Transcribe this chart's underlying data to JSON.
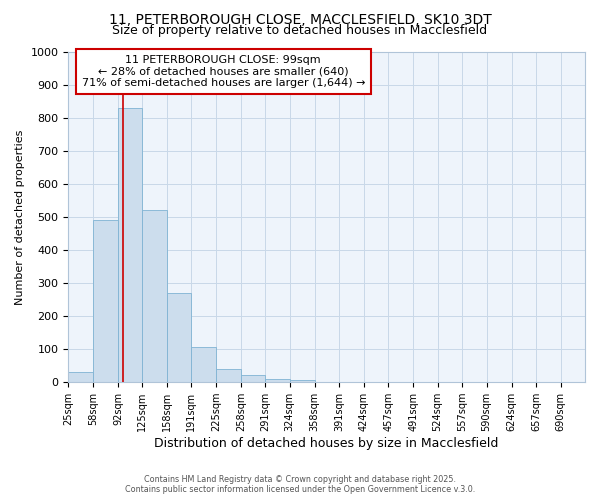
{
  "title_line1": "11, PETERBOROUGH CLOSE, MACCLESFIELD, SK10 3DT",
  "title_line2": "Size of property relative to detached houses in Macclesfield",
  "xlabel": "Distribution of detached houses by size in Macclesfield",
  "ylabel": "Number of detached properties",
  "bar_edges": [
    25,
    58,
    92,
    125,
    158,
    191,
    225,
    258,
    291,
    324,
    358,
    391,
    424,
    457,
    491,
    524,
    557,
    590,
    624,
    657,
    690
  ],
  "bar_heights": [
    32,
    492,
    830,
    522,
    270,
    108,
    40,
    22,
    10,
    8,
    0,
    0,
    0,
    0,
    0,
    0,
    0,
    0,
    0,
    0
  ],
  "bar_color": "#ccdded",
  "bar_edge_color": "#7fb3d3",
  "grid_color": "#c8d8e8",
  "bg_color": "#ffffff",
  "plot_bg_color": "#eef4fb",
  "red_line_x": 99,
  "annotation_title": "11 PETERBOROUGH CLOSE: 99sqm",
  "annotation_line2": "← 28% of detached houses are smaller (640)",
  "annotation_line3": "71% of semi-detached houses are larger (1,644) →",
  "annotation_box_color": "#cc0000",
  "ylim": [
    0,
    1000
  ],
  "yticks": [
    0,
    100,
    200,
    300,
    400,
    500,
    600,
    700,
    800,
    900,
    1000
  ],
  "footer_line1": "Contains HM Land Registry data © Crown copyright and database right 2025.",
  "footer_line2": "Contains public sector information licensed under the Open Government Licence v.3.0.",
  "figsize": [
    6.0,
    5.0
  ],
  "dpi": 100
}
